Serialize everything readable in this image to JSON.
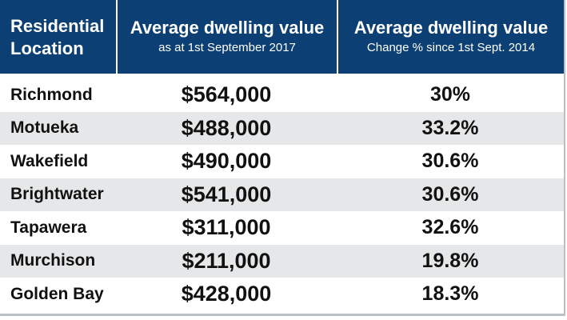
{
  "table": {
    "headers": {
      "location": [
        "Residential",
        "Location"
      ],
      "value": {
        "title": "Average dwelling value",
        "subtitle": "as at 1st September 2017"
      },
      "change": {
        "title": "Average dwelling value",
        "subtitle": "Change % since 1st Sept. 2014"
      }
    },
    "rows": [
      {
        "location": "Richmond",
        "value": "$564,000",
        "change": "30%"
      },
      {
        "location": "Motueka",
        "value": "$488,000",
        "change": "33.2%"
      },
      {
        "location": "Wakefield",
        "value": "$490,000",
        "change": "30.6%"
      },
      {
        "location": "Brightwater",
        "value": "$541,000",
        "change": "30.6%"
      },
      {
        "location": "Tapawera",
        "value": "$311,000",
        "change": "32.6%"
      },
      {
        "location": "Murchison",
        "value": "$211,000",
        "change": "19.8%"
      },
      {
        "location": "Golden Bay",
        "value": "$428,000",
        "change": "18.3%"
      }
    ]
  },
  "colors": {
    "header_background": "#0c3f73",
    "header_text": "#ffffff",
    "row_shade": "#e6e7e8"
  }
}
